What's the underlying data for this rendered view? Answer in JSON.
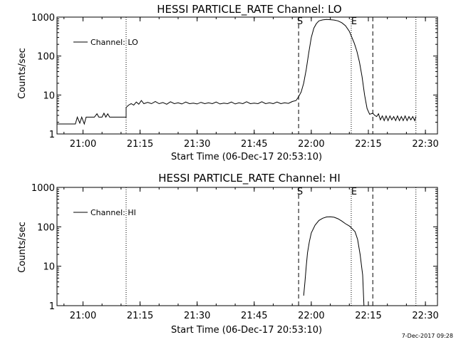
{
  "chart_data": [
    {
      "type": "line",
      "title": "HESSI PARTICLE_RATE Channel: LO",
      "xlabel": "Start Time (06-Dec-17 20:53:10)",
      "ylabel": "Counts/sec",
      "y_scale": "log",
      "ylim": [
        1,
        1000
      ],
      "xlim": [
        "20:53:10",
        "22:33:10"
      ],
      "x_ticks": [
        "21:00",
        "21:15",
        "21:30",
        "21:45",
        "22:00",
        "22:15",
        "22:30"
      ],
      "y_ticks": [
        "1",
        "10",
        "100",
        "1000"
      ],
      "legend": {
        "position": "top-left",
        "label": "Channel: LO"
      },
      "markers": [
        {
          "label": "S",
          "time": "21:56:40",
          "style": "dashed"
        },
        {
          "label": "E",
          "time": "22:10:30",
          "style": "dotted"
        },
        {
          "label": "",
          "time": "22:16:10",
          "style": "dashed"
        }
      ],
      "vlines_dotted": [
        "21:11:20",
        "22:27:30"
      ],
      "series": [
        {
          "points": [
            [
              "20:53:10",
              1.8
            ],
            [
              "20:58:00",
              1.8
            ],
            [
              "20:58:30",
              2.7
            ],
            [
              "20:59:10",
              1.9
            ],
            [
              "20:59:40",
              2.7
            ],
            [
              "21:00:20",
              1.8
            ],
            [
              "21:00:50",
              2.7
            ],
            [
              "21:01:30",
              2.7
            ],
            [
              "21:03:00",
              2.7
            ],
            [
              "21:03:40",
              3.3
            ],
            [
              "21:04:10",
              2.7
            ],
            [
              "21:05:00",
              2.7
            ],
            [
              "21:05:30",
              3.4
            ],
            [
              "21:06:00",
              2.7
            ],
            [
              "21:06:30",
              3.3
            ],
            [
              "21:07:00",
              2.7
            ],
            [
              "21:11:20",
              2.7
            ],
            [
              "21:11:20",
              4.8
            ],
            [
              "21:12:00",
              5.5
            ],
            [
              "21:12:40",
              6.0
            ],
            [
              "21:13:20",
              5.5
            ],
            [
              "21:14:00",
              6.6
            ],
            [
              "21:14:40",
              5.8
            ],
            [
              "21:15:20",
              7.2
            ],
            [
              "21:16:00",
              6.0
            ],
            [
              "21:17:00",
              6.5
            ],
            [
              "21:18:00",
              6.0
            ],
            [
              "21:19:00",
              6.8
            ],
            [
              "21:20:00",
              6.0
            ],
            [
              "21:21:00",
              6.4
            ],
            [
              "21:22:00",
              5.8
            ],
            [
              "21:23:00",
              6.7
            ],
            [
              "21:24:00",
              6.0
            ],
            [
              "21:25:00",
              6.3
            ],
            [
              "21:26:00",
              5.9
            ],
            [
              "21:27:00",
              6.6
            ],
            [
              "21:28:00",
              6.0
            ],
            [
              "21:29:00",
              6.2
            ],
            [
              "21:30:00",
              5.9
            ],
            [
              "21:31:00",
              6.5
            ],
            [
              "21:32:00",
              6.0
            ],
            [
              "21:33:00",
              6.3
            ],
            [
              "21:34:00",
              6.0
            ],
            [
              "21:35:00",
              6.6
            ],
            [
              "21:36:00",
              5.9
            ],
            [
              "21:37:00",
              6.2
            ],
            [
              "21:38:00",
              6.0
            ],
            [
              "21:39:00",
              6.6
            ],
            [
              "21:40:00",
              5.9
            ],
            [
              "21:41:00",
              6.3
            ],
            [
              "21:42:00",
              6.0
            ],
            [
              "21:43:00",
              6.7
            ],
            [
              "21:44:00",
              6.0
            ],
            [
              "21:45:00",
              6.2
            ],
            [
              "21:46:00",
              6.0
            ],
            [
              "21:47:00",
              6.7
            ],
            [
              "21:48:00",
              6.0
            ],
            [
              "21:49:00",
              6.3
            ],
            [
              "21:50:00",
              6.0
            ],
            [
              "21:51:00",
              6.6
            ],
            [
              "21:52:00",
              6.0
            ],
            [
              "21:53:00",
              6.3
            ],
            [
              "21:54:00",
              6.1
            ],
            [
              "21:55:00",
              6.8
            ],
            [
              "21:56:00",
              7.2
            ],
            [
              "21:56:40",
              9.0
            ],
            [
              "21:57:20",
              12
            ],
            [
              "21:58:00",
              20
            ],
            [
              "21:58:40",
              45
            ],
            [
              "21:59:20",
              120
            ],
            [
              "22:00:00",
              300
            ],
            [
              "22:00:40",
              520
            ],
            [
              "22:01:20",
              680
            ],
            [
              "22:02:00",
              800
            ],
            [
              "22:03:00",
              850
            ],
            [
              "22:04:00",
              870
            ],
            [
              "22:05:00",
              860
            ],
            [
              "22:06:00",
              840
            ],
            [
              "22:07:00",
              800
            ],
            [
              "22:08:00",
              720
            ],
            [
              "22:09:00",
              600
            ],
            [
              "22:10:00",
              430
            ],
            [
              "22:10:30",
              330
            ],
            [
              "22:11:20",
              210
            ],
            [
              "22:12:00",
              130
            ],
            [
              "22:12:40",
              70
            ],
            [
              "22:13:20",
              30
            ],
            [
              "22:14:00",
              10
            ],
            [
              "22:14:40",
              4.5
            ],
            [
              "22:15:20",
              3.2
            ],
            [
              "22:16:10",
              3.4
            ],
            [
              "22:16:40",
              3.0
            ],
            [
              "22:17:10",
              2.8
            ],
            [
              "22:17:40",
              3.3
            ],
            [
              "22:18:10",
              2.3
            ],
            [
              "22:18:40",
              2.9
            ],
            [
              "22:19:10",
              2.2
            ],
            [
              "22:19:40",
              2.9
            ],
            [
              "22:20:10",
              2.2
            ],
            [
              "22:20:40",
              2.9
            ],
            [
              "22:21:10",
              2.3
            ],
            [
              "22:21:40",
              2.8
            ],
            [
              "22:22:10",
              2.2
            ],
            [
              "22:22:40",
              2.9
            ],
            [
              "22:23:10",
              2.2
            ],
            [
              "22:23:40",
              2.8
            ],
            [
              "22:24:10",
              2.2
            ],
            [
              "22:24:40",
              2.9
            ],
            [
              "22:25:10",
              2.2
            ],
            [
              "22:25:40",
              2.8
            ],
            [
              "22:26:10",
              2.3
            ],
            [
              "22:26:40",
              2.8
            ],
            [
              "22:27:10",
              2.2
            ],
            [
              "22:27:30",
              2.8
            ]
          ]
        }
      ]
    },
    {
      "type": "line",
      "title": "HESSI PARTICLE_RATE Channel: HI",
      "xlabel": "Start Time (06-Dec-17 20:53:10)",
      "ylabel": "Counts/sec",
      "y_scale": "log",
      "ylim": [
        1,
        1000
      ],
      "xlim": [
        "20:53:10",
        "22:33:10"
      ],
      "x_ticks": [
        "21:00",
        "21:15",
        "21:30",
        "21:45",
        "22:00",
        "22:15",
        "22:30"
      ],
      "y_ticks": [
        "1",
        "10",
        "100",
        "1000"
      ],
      "legend": {
        "position": "top-left",
        "label": "Channel: HI"
      },
      "markers": [
        {
          "label": "S",
          "time": "21:56:40",
          "style": "dashed"
        },
        {
          "label": "E",
          "time": "22:10:30",
          "style": "dotted"
        },
        {
          "label": "",
          "time": "22:16:10",
          "style": "dashed"
        }
      ],
      "vlines_dotted": [
        "21:11:20",
        "22:27:30"
      ],
      "series": [
        {
          "points": [
            [
              "21:58:00",
              1.8
            ],
            [
              "21:58:20",
              4.0
            ],
            [
              "21:58:40",
              10
            ],
            [
              "21:59:00",
              22
            ],
            [
              "21:59:30",
              42
            ],
            [
              "22:00:00",
              70
            ],
            [
              "22:01:00",
              110
            ],
            [
              "22:02:00",
              145
            ],
            [
              "22:03:00",
              165
            ],
            [
              "22:04:00",
              178
            ],
            [
              "22:05:00",
              180
            ],
            [
              "22:06:00",
              175
            ],
            [
              "22:07:00",
              160
            ],
            [
              "22:08:00",
              140
            ],
            [
              "22:09:00",
              120
            ],
            [
              "22:10:00",
              105
            ],
            [
              "22:10:30",
              95
            ],
            [
              "22:11:30",
              75
            ],
            [
              "22:12:10",
              48
            ],
            [
              "22:12:50",
              20
            ],
            [
              "22:13:30",
              6
            ],
            [
              "22:13:50",
              1.0
            ]
          ]
        }
      ]
    }
  ],
  "timestamp": "7-Dec-2017 09:28"
}
